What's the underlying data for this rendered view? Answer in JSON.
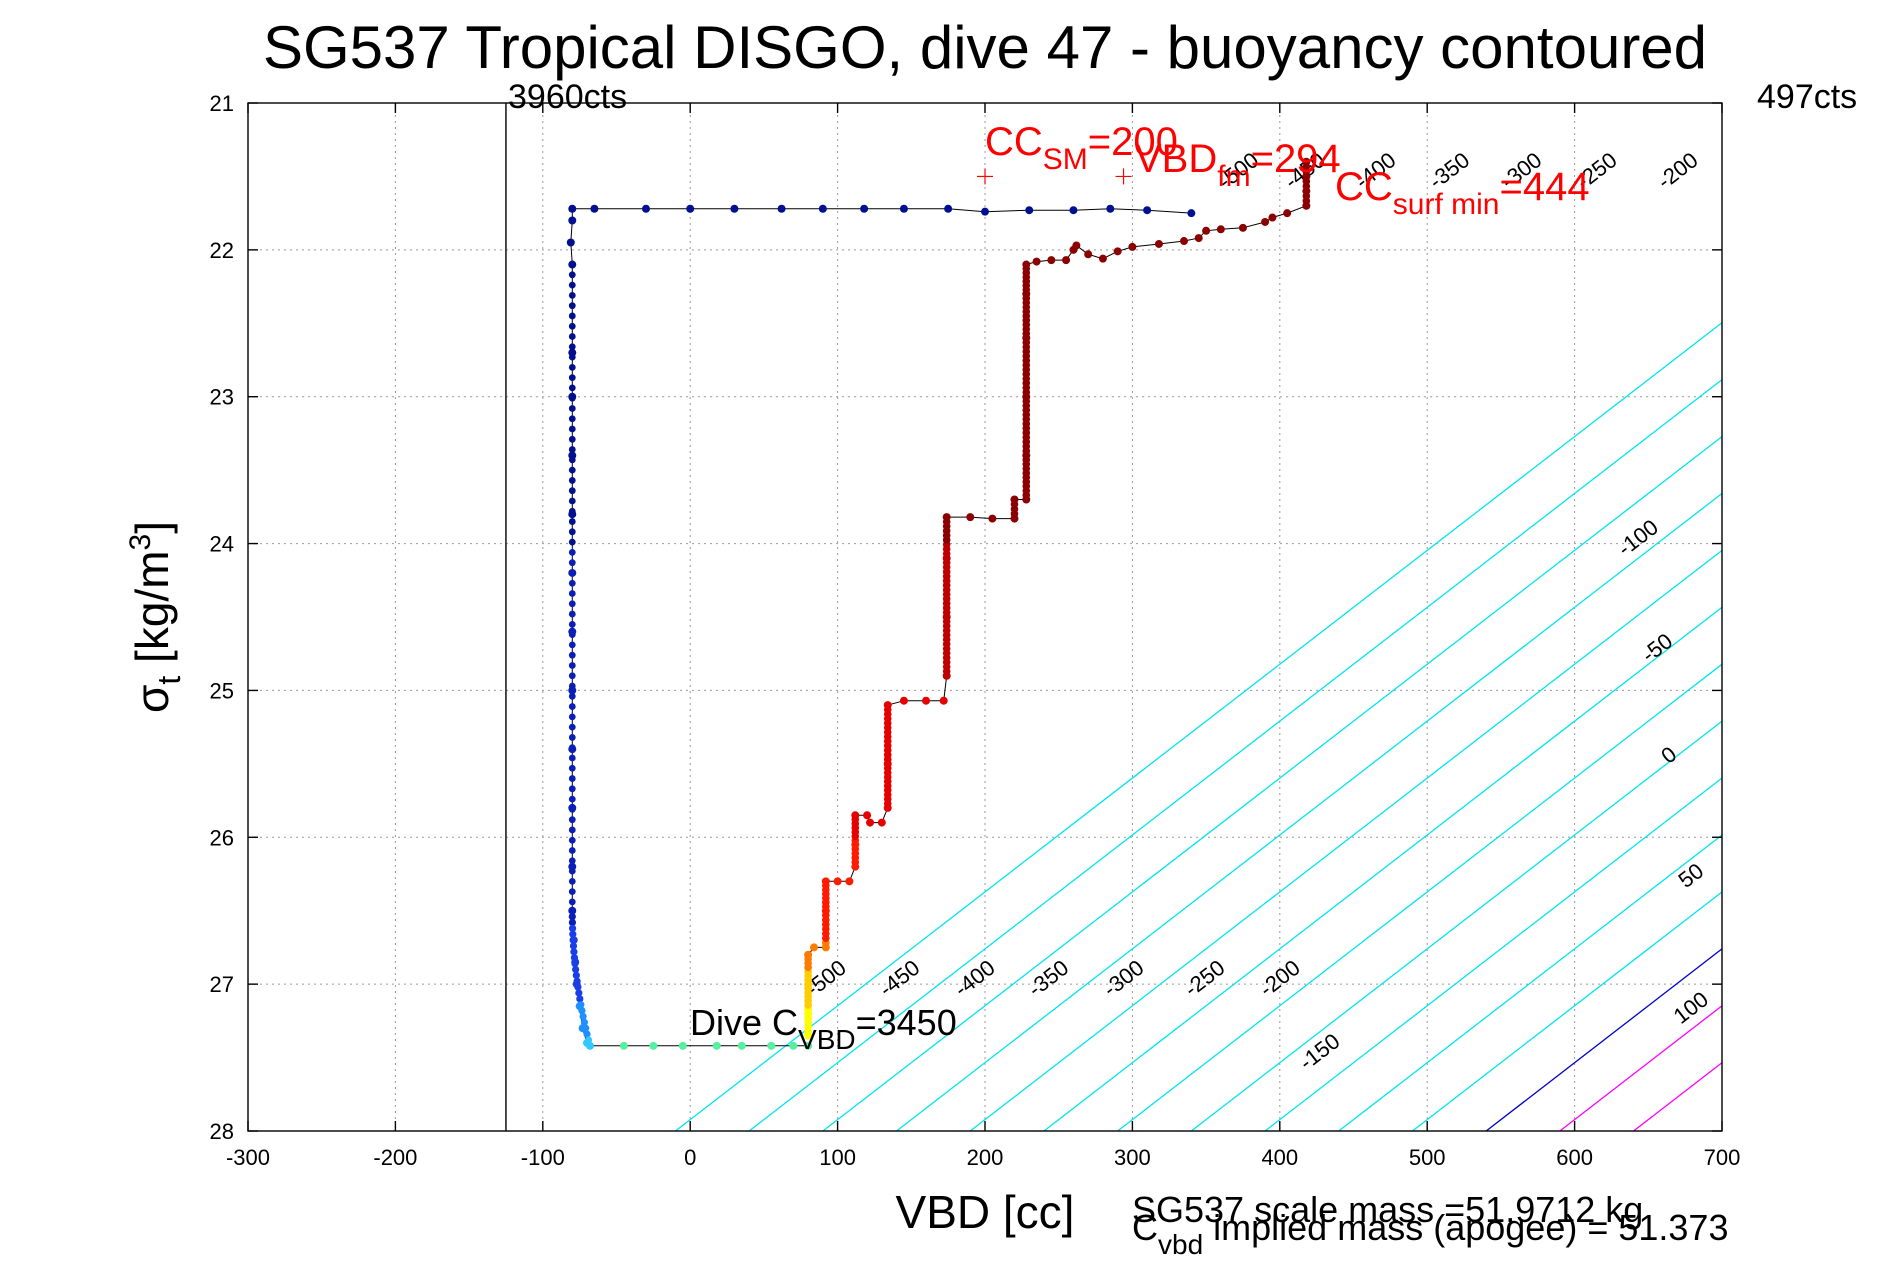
{
  "chart_data": {
    "type": "scatter",
    "title": "SG537 Tropical DISGO, dive 47 - buoyancy contoured",
    "xlabel": "VBD [cc]",
    "ylabel_main": "σ",
    "ylabel_sub": "t",
    "ylabel_unit": " [kg/m",
    "ylabel_sup": "3",
    "ylabel_close": "]",
    "xlim": [
      -300,
      700
    ],
    "ylim": [
      21,
      28
    ],
    "y_reversed": true,
    "grid": true,
    "xticks": [
      -300,
      -200,
      -100,
      0,
      100,
      200,
      300,
      400,
      500,
      600,
      700
    ],
    "yticks": [
      21,
      22,
      23,
      24,
      25,
      26,
      27,
      28
    ],
    "xtick_labels": [
      "-300",
      "-200",
      "-100",
      "0",
      "100",
      "200",
      "300",
      "400",
      "500",
      "600",
      "700"
    ],
    "ytick_labels": [
      "21",
      "22",
      "23",
      "24",
      "25",
      "26",
      "27",
      "28"
    ],
    "vertical_line": {
      "x": -125,
      "label": "3960cts"
    },
    "right_counts_label": "497cts",
    "contours": {
      "slope_cc_per_sigma": 129,
      "anchor_sigma": 28,
      "anchor_x_zero": 540,
      "levels": [
        -550,
        -500,
        -450,
        -400,
        -350,
        -300,
        -250,
        -200,
        -150,
        -100,
        -50,
        0,
        50,
        100
      ],
      "colors": {
        "negative": "#00e5ee",
        "zero": "#0000cc",
        "positive": "#ff00ff"
      },
      "labels": [
        {
          "text": "-500",
          "x": 95,
          "y": 27.0
        },
        {
          "text": "-450",
          "x": 145,
          "y": 27.0
        },
        {
          "text": "-400",
          "x": 196,
          "y": 27.0
        },
        {
          "text": "-350",
          "x": 246,
          "y": 27.0
        },
        {
          "text": "-300",
          "x": 297,
          "y": 27.0
        },
        {
          "text": "-250",
          "x": 352,
          "y": 27.0
        },
        {
          "text": "-200",
          "x": 403,
          "y": 27.0
        },
        {
          "text": "-150",
          "x": 430,
          "y": 27.5
        },
        {
          "text": "-100",
          "x": 646,
          "y": 24.0
        },
        {
          "text": "-50",
          "x": 659,
          "y": 24.75
        },
        {
          "text": "0",
          "x": 667,
          "y": 25.48
        },
        {
          "text": "50",
          "x": 682,
          "y": 26.3
        },
        {
          "text": "100",
          "x": 682,
          "y": 27.2
        },
        {
          "text": "-500",
          "x": 375,
          "y": 21.5
        },
        {
          "text": "-450",
          "x": 420,
          "y": 21.5
        },
        {
          "text": "-400",
          "x": 468,
          "y": 21.5
        },
        {
          "text": "-350",
          "x": 518,
          "y": 21.5
        },
        {
          "text": "-300",
          "x": 567,
          "y": 21.5
        },
        {
          "text": "-250",
          "x": 618,
          "y": 21.5
        },
        {
          "text": "-200",
          "x": 673,
          "y": 21.5
        }
      ]
    },
    "descent": [
      [
        340,
        21.75
      ],
      [
        310,
        21.73
      ],
      [
        285,
        21.72
      ],
      [
        260,
        21.73
      ],
      [
        230,
        21.73
      ],
      [
        200,
        21.74
      ],
      [
        175,
        21.72
      ],
      [
        145,
        21.72
      ],
      [
        118,
        21.72
      ],
      [
        90,
        21.72
      ],
      [
        62,
        21.72
      ],
      [
        30,
        21.72
      ],
      [
        0,
        21.72
      ],
      [
        -30,
        21.72
      ],
      [
        -65,
        21.72
      ],
      [
        -80,
        21.72
      ],
      [
        -80,
        21.8
      ],
      [
        -81,
        21.95
      ],
      [
        -80,
        22.1
      ],
      [
        -80,
        22.7
      ],
      [
        -80,
        23.0
      ],
      [
        -80,
        23.4
      ],
      [
        -80,
        23.8
      ],
      [
        -80,
        24.2
      ],
      [
        -80,
        24.6
      ],
      [
        -80,
        25.0
      ],
      [
        -80,
        25.4
      ],
      [
        -80,
        25.8
      ],
      [
        -80,
        26.2
      ],
      [
        -80,
        26.5
      ],
      [
        -79,
        26.7
      ],
      [
        -78,
        26.85
      ],
      [
        -77,
        27.0
      ],
      [
        -75,
        27.15
      ],
      [
        -73,
        27.3
      ],
      [
        -70,
        27.4
      ],
      [
        -68,
        27.42
      ],
      [
        -45,
        27.42
      ],
      [
        -25,
        27.42
      ],
      [
        -5,
        27.42
      ],
      [
        18,
        27.42
      ],
      [
        35,
        27.42
      ],
      [
        55,
        27.42
      ],
      [
        70,
        27.42
      ],
      [
        80,
        27.42
      ]
    ],
    "ascent": [
      [
        80,
        27.35
      ],
      [
        80,
        27.2
      ],
      [
        80,
        27.0
      ],
      [
        80,
        26.8
      ],
      [
        84,
        26.75
      ],
      [
        92,
        26.75
      ],
      [
        92,
        26.5
      ],
      [
        92,
        26.3
      ],
      [
        100,
        26.3
      ],
      [
        108,
        26.3
      ],
      [
        112,
        26.2
      ],
      [
        112,
        26.05
      ],
      [
        112,
        25.85
      ],
      [
        120,
        25.85
      ],
      [
        122,
        25.9
      ],
      [
        130,
        25.9
      ],
      [
        134,
        25.8
      ],
      [
        134,
        25.5
      ],
      [
        134,
        25.1
      ],
      [
        145,
        25.07
      ],
      [
        160,
        25.07
      ],
      [
        172,
        25.07
      ],
      [
        174,
        24.9
      ],
      [
        174,
        24.5
      ],
      [
        174,
        24.1
      ],
      [
        174,
        23.82
      ],
      [
        190,
        23.82
      ],
      [
        205,
        23.83
      ],
      [
        220,
        23.83
      ],
      [
        220,
        23.7
      ],
      [
        228,
        23.7
      ],
      [
        228,
        23.4
      ],
      [
        228,
        23.0
      ],
      [
        228,
        22.6
      ],
      [
        228,
        22.3
      ],
      [
        228,
        22.1
      ],
      [
        235,
        22.08
      ],
      [
        245,
        22.07
      ],
      [
        255,
        22.07
      ],
      [
        260,
        22.0
      ],
      [
        262,
        21.97
      ],
      [
        270,
        22.03
      ],
      [
        280,
        22.06
      ],
      [
        290,
        22.01
      ],
      [
        300,
        21.98
      ],
      [
        318,
        21.96
      ],
      [
        335,
        21.94
      ],
      [
        345,
        21.92
      ],
      [
        350,
        21.87
      ],
      [
        360,
        21.86
      ],
      [
        375,
        21.85
      ],
      [
        390,
        21.81
      ],
      [
        395,
        21.78
      ],
      [
        405,
        21.75
      ],
      [
        418,
        21.7
      ],
      [
        418,
        21.6
      ],
      [
        418,
        21.5
      ],
      [
        418,
        21.4
      ]
    ],
    "markers": [
      {
        "x": 200,
        "y": 21.5
      },
      {
        "x": 294,
        "y": 21.5
      }
    ],
    "annotations": {
      "cc_sm": {
        "a": "CC",
        "sub": "SM",
        "b": "=200"
      },
      "vbd_fm": {
        "a": "VBD",
        "sub": "fm",
        "b": "=294"
      },
      "cc_surf": {
        "a": "CC",
        "sub": "surf min",
        "b": "=444"
      },
      "dive_c": {
        "a": "Dive C",
        "sub": "VBD",
        "b": "=3450"
      }
    },
    "footer": {
      "scale_mass": "SG537 scale mass =51.9712 kg",
      "cvbd_main": "C",
      "cvbd_sub": "vbd",
      "cvbd_rest": " implied mass (apogee) = 51.373"
    }
  }
}
